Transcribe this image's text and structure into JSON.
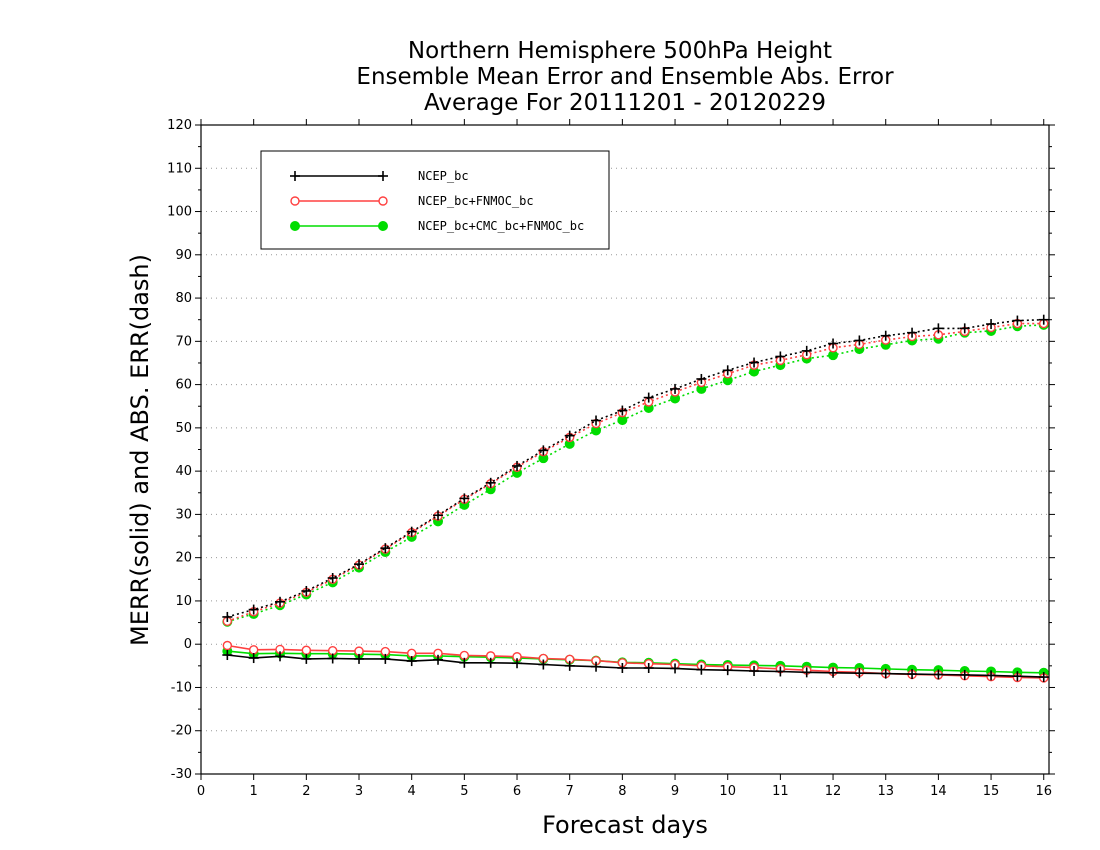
{
  "chart_data": {
    "type": "line",
    "title": [
      "Northern Hemisphere 500hPa Height",
      "Ensemble Mean Error and Ensemble Abs. Error",
      "Average For 20111201 - 20120229"
    ],
    "xlabel": "Forecast days",
    "ylabel": "MERR(solid) and ABS. ERR(dash)",
    "xlim": [
      0,
      16.1
    ],
    "ylim": [
      -30,
      120
    ],
    "xticks": [
      "0",
      "1",
      "2",
      "3",
      "4",
      "5",
      "6",
      "7",
      "8",
      "9",
      "10",
      "11",
      "12",
      "13",
      "14",
      "15",
      "16"
    ],
    "yticks": [
      "-30",
      "-20",
      "-10",
      "0",
      "10",
      "20",
      "30",
      "40",
      "50",
      "60",
      "70",
      "80",
      "90",
      "100",
      "110",
      "120"
    ],
    "grid": "horizontal dotted",
    "legend_position": "top-left",
    "x": [
      0.5,
      1,
      1.5,
      2,
      2.5,
      3,
      3.5,
      4,
      4.5,
      5,
      5.5,
      6,
      6.5,
      7,
      7.5,
      8,
      8.5,
      9,
      9.5,
      10,
      10.5,
      11,
      11.5,
      12,
      12.5,
      13,
      13.5,
      14,
      14.5,
      15,
      15.5,
      16
    ],
    "series": [
      {
        "name": "NCEP_bc",
        "color": "#000000",
        "marker": "plus",
        "merr": [
          -2.5,
          -3.2,
          -2.8,
          -3.4,
          -3.3,
          -3.4,
          -3.4,
          -3.9,
          -3.6,
          -4.3,
          -4.3,
          -4.4,
          -4.7,
          -5.0,
          -5.2,
          -5.5,
          -5.5,
          -5.6,
          -5.9,
          -6.0,
          -6.2,
          -6.3,
          -6.5,
          -6.6,
          -6.7,
          -6.8,
          -6.9,
          -7.0,
          -7.1,
          -7.2,
          -7.4,
          -7.6
        ],
        "abs_err": [
          6.3,
          8.0,
          9.8,
          12.3,
          15.3,
          18.5,
          22.2,
          26.0,
          29.8,
          33.7,
          37.3,
          41.2,
          44.8,
          48.2,
          51.7,
          54.0,
          57.0,
          59.0,
          61.3,
          63.3,
          65.1,
          66.5,
          67.8,
          69.5,
          70.2,
          71.3,
          72.0,
          73.0,
          73.0,
          74.0,
          74.8,
          75.0
        ]
      },
      {
        "name": "NCEP_bc+FNMOC_bc",
        "color": "#ff4040",
        "marker": "circle-open",
        "merr": [
          -0.3,
          -1.3,
          -1.2,
          -1.4,
          -1.5,
          -1.6,
          -1.7,
          -2.1,
          -2.1,
          -2.6,
          -2.7,
          -2.9,
          -3.3,
          -3.5,
          -3.8,
          -4.3,
          -4.5,
          -4.7,
          -5.0,
          -5.2,
          -5.4,
          -5.7,
          -6.0,
          -6.3,
          -6.5,
          -6.8,
          -7.0,
          -7.1,
          -7.3,
          -7.5,
          -7.7,
          -7.8
        ],
        "abs_err": [
          5.3,
          7.5,
          9.5,
          12.0,
          15.0,
          18.3,
          22.0,
          25.8,
          29.6,
          33.5,
          37.1,
          40.9,
          44.5,
          47.8,
          51.0,
          53.5,
          56.0,
          58.3,
          60.5,
          62.5,
          64.5,
          65.6,
          66.9,
          68.5,
          69.3,
          70.3,
          71.1,
          71.5,
          72.3,
          73.2,
          74.1,
          74.1
        ]
      },
      {
        "name": "NCEP_bc+CMC_bc+FNMOC_bc",
        "color": "#00dd00",
        "marker": "circle-filled",
        "merr": [
          -1.6,
          -2.2,
          -2.1,
          -2.2,
          -2.2,
          -2.3,
          -2.4,
          -2.7,
          -2.7,
          -2.9,
          -3.0,
          -3.2,
          -3.4,
          -3.6,
          -3.8,
          -4.2,
          -4.3,
          -4.5,
          -4.7,
          -4.8,
          -4.9,
          -5.0,
          -5.2,
          -5.4,
          -5.5,
          -5.7,
          -5.9,
          -6.0,
          -6.2,
          -6.3,
          -6.5,
          -6.6
        ],
        "abs_err": [
          5.2,
          7.0,
          9.0,
          11.5,
          14.3,
          17.7,
          21.3,
          24.8,
          28.4,
          32.2,
          35.8,
          39.6,
          43.0,
          46.3,
          49.4,
          51.8,
          54.6,
          56.8,
          59.0,
          61.0,
          63.0,
          64.5,
          66.0,
          66.8,
          68.2,
          69.2,
          70.2,
          70.6,
          72.0,
          72.4,
          73.5,
          73.8
        ]
      }
    ]
  }
}
